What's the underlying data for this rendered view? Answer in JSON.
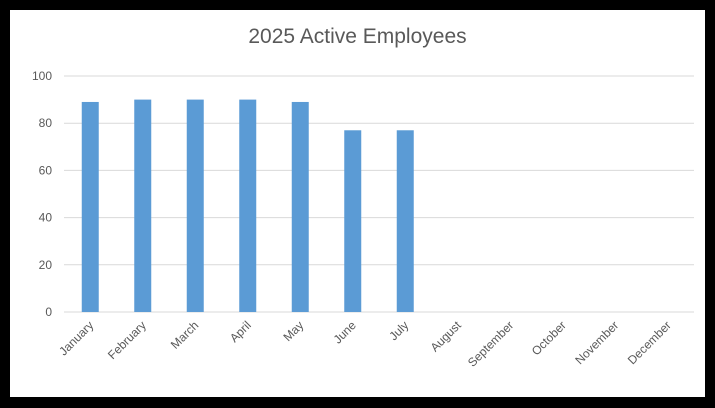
{
  "chart_data": {
    "type": "bar",
    "title": "2025 Active Employees",
    "xlabel": "",
    "ylabel": "",
    "categories": [
      "January",
      "February",
      "March",
      "April",
      "May",
      "June",
      "July",
      "August",
      "September",
      "October",
      "November",
      "December"
    ],
    "values": [
      89,
      90,
      90,
      90,
      89,
      77,
      77,
      null,
      null,
      null,
      null,
      null
    ],
    "ylim": [
      0,
      100
    ],
    "yticks": [
      0,
      20,
      40,
      60,
      80,
      100
    ],
    "ytick_labels": [
      "0",
      "20",
      "40",
      "60",
      "80",
      "100"
    ],
    "grid": true,
    "legend": "none",
    "colors": {
      "bar": "#5b9bd5",
      "grid": "#d9d9d9",
      "text": "#595959",
      "frame": "#000000",
      "background": "#ffffff"
    }
  }
}
